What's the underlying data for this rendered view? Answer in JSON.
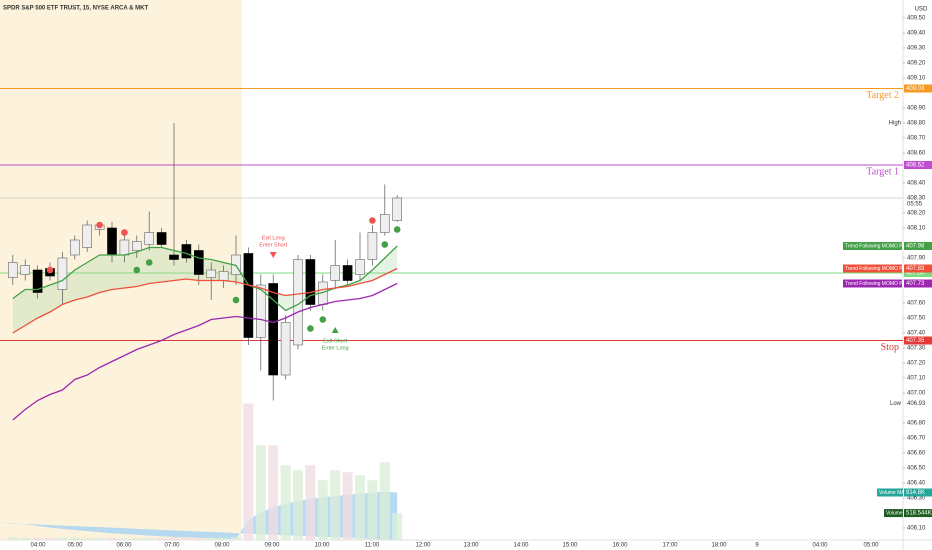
{
  "chart_data": {
    "type": "candlestick",
    "title": "SPDR S&P 500 ETF TRUST, 15, NYSE ARCA & MKT",
    "currency": "USD",
    "ylim": [
      406.02,
      409.62
    ],
    "yticks": [
      {
        "value": 409.5,
        "label": "409.50"
      },
      {
        "value": 409.4,
        "label": "409.40"
      },
      {
        "value": 409.3,
        "label": "409.30"
      },
      {
        "value": 409.2,
        "label": "409.20"
      },
      {
        "value": 409.1,
        "label": "409.10"
      },
      {
        "value": 408.9,
        "label": "408.90"
      },
      {
        "value": 408.8,
        "label": "408.80"
      },
      {
        "value": 408.7,
        "label": "408.70"
      },
      {
        "value": 408.6,
        "label": "408.60"
      },
      {
        "value": 408.4,
        "label": "408.40"
      },
      {
        "value": 408.2,
        "label": "408.20"
      },
      {
        "value": 408.1,
        "label": "408.10"
      },
      {
        "value": 407.9,
        "label": "407.90"
      },
      {
        "value": 407.6,
        "label": "407.60"
      },
      {
        "value": 407.5,
        "label": "407.50"
      },
      {
        "value": 407.4,
        "label": "407.40"
      },
      {
        "value": 407.3,
        "label": "407.30"
      },
      {
        "value": 407.2,
        "label": "407.20"
      },
      {
        "value": 407.1,
        "label": "407.10"
      },
      {
        "value": 407.0,
        "label": "407.00"
      },
      {
        "value": 406.8,
        "label": "406.80"
      },
      {
        "value": 406.7,
        "label": "406.70"
      },
      {
        "value": 406.6,
        "label": "406.60"
      },
      {
        "value": 406.5,
        "label": "406.50"
      },
      {
        "value": 406.4,
        "label": "406.40"
      },
      {
        "value": 406.3,
        "label": "406.30"
      },
      {
        "value": 406.1,
        "label": "406.10"
      }
    ],
    "xticks": [
      "04:00",
      "05:00",
      "06:00",
      "07:00",
      "08:00",
      "09:00",
      "10:00",
      "11:00",
      "12:00",
      "13:00",
      "14:00",
      "15:00",
      "16:00",
      "17:00",
      "18:00",
      "9",
      "04:00",
      "05:00"
    ],
    "candles": {
      "open": [
        407.77,
        407.79,
        407.82,
        407.83,
        407.69,
        407.92,
        407.97,
        408.09,
        408.1,
        407.92,
        407.95,
        407.99,
        408.07,
        407.92,
        407.99,
        407.95,
        407.77,
        407.75,
        407.79,
        407.93,
        407.37,
        407.73,
        407.12,
        407.32,
        407.89,
        407.59,
        407.75,
        407.85,
        407.79,
        407.89,
        408.07,
        408.15
      ],
      "high": [
        407.92,
        407.89,
        407.85,
        407.87,
        407.94,
        408.05,
        408.15,
        408.14,
        408.14,
        408.07,
        408.05,
        408.21,
        408.1,
        408.8,
        408.02,
        407.99,
        407.87,
        407.85,
        408.05,
        407.97,
        407.79,
        407.79,
        407.52,
        407.92,
        407.92,
        407.79,
        408.02,
        407.89,
        408.07,
        408.12,
        408.39,
        408.32
      ],
      "low": [
        407.72,
        407.75,
        407.63,
        407.75,
        407.59,
        407.89,
        407.94,
        408.05,
        407.87,
        407.87,
        407.9,
        407.95,
        407.97,
        407.85,
        407.87,
        407.72,
        407.62,
        407.7,
        407.72,
        407.32,
        407.15,
        406.95,
        407.09,
        407.29,
        407.55,
        407.55,
        407.69,
        407.72,
        407.75,
        407.85,
        408.05,
        408.14
      ],
      "close": [
        407.87,
        407.85,
        407.67,
        407.78,
        407.9,
        408.02,
        408.12,
        408.12,
        407.92,
        408.02,
        408.01,
        408.07,
        407.99,
        407.89,
        407.9,
        407.79,
        407.82,
        407.81,
        407.92,
        407.37,
        407.72,
        407.12,
        407.47,
        407.89,
        407.59,
        407.74,
        407.85,
        407.75,
        407.89,
        408.07,
        408.19,
        408.3
      ]
    },
    "last_price": {
      "value": 408.3,
      "label": "408.30",
      "countdown": "05:55",
      "color": "#b0b0b0"
    },
    "series": [
      {
        "name": "Trend Following MOMO Plot",
        "color": "#43a047",
        "value_label": "407.98",
        "values": [
          407.63,
          407.69,
          407.69,
          407.72,
          407.75,
          407.82,
          407.87,
          407.92,
          407.92,
          407.92,
          407.94,
          407.97,
          407.97,
          407.95,
          407.93,
          407.9,
          407.89,
          407.87,
          407.85,
          407.72,
          407.69,
          407.62,
          407.55,
          407.59,
          407.65,
          407.67,
          407.7,
          407.72,
          407.75,
          407.82,
          407.9,
          407.98
        ]
      },
      {
        "name": "Trend Following MOMO Plot",
        "color": "#f0503a",
        "value_label": "407.83",
        "values": [
          407.4,
          407.45,
          407.5,
          407.54,
          407.59,
          407.62,
          407.64,
          407.67,
          407.69,
          407.7,
          407.71,
          407.73,
          407.74,
          407.75,
          407.76,
          407.75,
          407.75,
          407.75,
          407.74,
          407.72,
          407.7,
          407.67,
          407.65,
          407.66,
          407.67,
          407.69,
          407.7,
          407.71,
          407.73,
          407.75,
          407.79,
          407.83
        ]
      },
      {
        "name": "Trend Following MOMO Plot",
        "color": "#9c27b0",
        "value_label": "407.73",
        "values": [
          406.82,
          406.89,
          406.95,
          406.99,
          407.02,
          407.09,
          407.12,
          407.17,
          407.21,
          407.25,
          407.29,
          407.32,
          407.35,
          407.39,
          407.42,
          407.45,
          407.49,
          407.5,
          407.51,
          407.5,
          407.49,
          407.47,
          407.5,
          407.54,
          407.57,
          407.59,
          407.61,
          407.62,
          407.63,
          407.65,
          407.69,
          407.73
        ]
      }
    ],
    "levels": [
      {
        "label": "Target 2",
        "value": 409.03,
        "value_label": "409.03",
        "color": "#f59a23"
      },
      {
        "label": "Target 1",
        "value": 408.52,
        "value_label": "408.52",
        "color": "#c04fd0"
      },
      {
        "value": 407.8,
        "value_label": "407.80",
        "color": "#7ddc7d"
      },
      {
        "label": "Stop",
        "value": 407.35,
        "value_label": "407.35",
        "color": "#e53935"
      }
    ],
    "high": {
      "label": "High",
      "value": 408.8
    },
    "low": {
      "label": "Low",
      "value": 406.93,
      "value_label": "406.93"
    },
    "signals": {
      "sell_dots": {
        "color": "#ef5350",
        "values": [
          null,
          null,
          null,
          407.82,
          null,
          null,
          null,
          408.12,
          null,
          408.07,
          null,
          null,
          null,
          null,
          null,
          null,
          null,
          null,
          null,
          null,
          null,
          null,
          null,
          null,
          null,
          null,
          null,
          null,
          null,
          408.15,
          null,
          null
        ]
      },
      "buy_dots": {
        "color": "#43a047",
        "values": [
          null,
          null,
          null,
          null,
          null,
          null,
          null,
          null,
          null,
          null,
          407.82,
          407.87,
          null,
          null,
          null,
          null,
          null,
          null,
          407.62,
          null,
          null,
          null,
          null,
          null,
          407.43,
          407.49,
          null,
          null,
          null,
          null,
          407.99,
          408.09
        ]
      },
      "exit_long": {
        "text": [
          "Exit Long",
          "Enter Short"
        ],
        "color": "#ef5350",
        "values": [
          null,
          null,
          null,
          null,
          null,
          null,
          null,
          null,
          null,
          null,
          null,
          null,
          null,
          null,
          null,
          null,
          null,
          null,
          null,
          null,
          null,
          407.92,
          null,
          null,
          null,
          null,
          null,
          null,
          null,
          null,
          null,
          null
        ]
      },
      "exit_short": {
        "text": [
          "Exit Short",
          "Enter Long"
        ],
        "color": "#43a047",
        "values": [
          null,
          null,
          null,
          null,
          null,
          null,
          null,
          null,
          null,
          null,
          null,
          null,
          null,
          null,
          null,
          null,
          null,
          null,
          null,
          null,
          null,
          null,
          null,
          null,
          null,
          null,
          407.42,
          null,
          null,
          null,
          null,
          null
        ]
      }
    },
    "volume": {
      "name": "Volume",
      "value_label": "518.544K",
      "up_color": "#dcedd8",
      "down_color": "#f0dde2",
      "label_color": "#1b5e20",
      "ylim": [
        0,
        10400
      ],
      "values": [
        60,
        50,
        40,
        45,
        55,
        50,
        45,
        40,
        40,
        35,
        40,
        45,
        40,
        50,
        40,
        45,
        40,
        45,
        60,
        2630,
        1824,
        1824,
        1440,
        1344,
        1440,
        1152,
        1344,
        1306,
        1248,
        1152,
        1498,
        518.544
      ]
    },
    "volume_ma": {
      "name": "Volume MA",
      "value_label": "914.8K",
      "color": "#a9d4f2",
      "label_color": "#26a69a",
      "values": [
        330,
        300,
        270,
        240,
        215,
        190,
        170,
        150,
        130,
        115,
        100,
        85,
        70,
        60,
        50,
        40,
        30,
        25,
        20,
        380,
        530,
        630,
        700,
        750,
        790,
        820,
        850,
        870,
        890,
        910,
        930,
        914.8
      ]
    }
  }
}
